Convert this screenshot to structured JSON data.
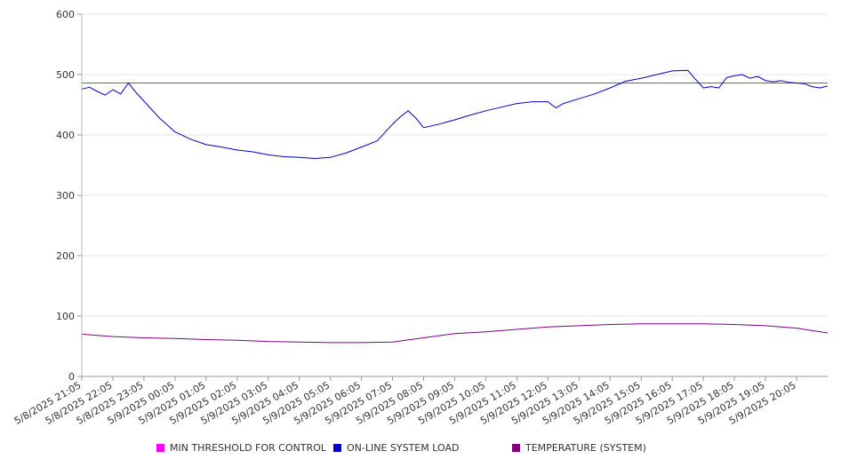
{
  "chart_data": {
    "type": "line",
    "title": "",
    "xlabel": "",
    "ylabel": "",
    "ylim": [
      0,
      600
    ],
    "yticks": [
      0,
      100,
      200,
      300,
      400,
      500,
      600
    ],
    "grid": true,
    "legend_position": "bottom",
    "x_tick_labels": [
      "5/8/2025 21:05",
      "5/8/2025 22:05",
      "5/8/2025 23:05",
      "5/9/2025 00:05",
      "5/9/2025 01:05",
      "5/9/2025 02:05",
      "5/9/2025 03:05",
      "5/9/2025 04:05",
      "5/9/2025 05:05",
      "5/9/2025 06:05",
      "5/9/2025 07:05",
      "5/9/2025 08:05",
      "5/9/2025 09:05",
      "5/9/2025 10:05",
      "5/9/2025 11:05",
      "5/9/2025 12:05",
      "5/9/2025 13:05",
      "5/9/2025 14:05",
      "5/9/2025 15:05",
      "5/9/2025 16:05",
      "5/9/2025 17:05",
      "5/9/2025 18:05",
      "5/9/2025 19:05",
      "5/9/2025 20:05"
    ],
    "x_start": "5/8/2025 21:05",
    "x_end": "5/9/2025 21:05",
    "series": [
      {
        "name": "MIN THRESHOLD FOR CONTROL",
        "color": "#ff00ff",
        "x": [
          "5/8/2025 21:05",
          "5/9/2025 21:05"
        ],
        "values": [
          486,
          486
        ]
      },
      {
        "name": "ON-LINE SYSTEM LOAD",
        "color": "#0000cc",
        "x": [
          "5/8/2025 21:05",
          "5/8/2025 21:20",
          "5/8/2025 21:35",
          "5/8/2025 21:50",
          "5/8/2025 22:05",
          "5/8/2025 22:20",
          "5/8/2025 22:35",
          "5/8/2025 22:50",
          "5/8/2025 23:05",
          "5/8/2025 23:35",
          "5/9/2025 00:05",
          "5/9/2025 00:35",
          "5/9/2025 01:05",
          "5/9/2025 01:35",
          "5/9/2025 02:05",
          "5/9/2025 02:35",
          "5/9/2025 03:05",
          "5/9/2025 03:35",
          "5/9/2025 04:05",
          "5/9/2025 04:35",
          "5/9/2025 05:05",
          "5/9/2025 05:35",
          "5/9/2025 06:05",
          "5/9/2025 06:35",
          "5/9/2025 07:05",
          "5/9/2025 07:20",
          "5/9/2025 07:35",
          "5/9/2025 07:50",
          "5/9/2025 08:05",
          "5/9/2025 08:35",
          "5/9/2025 09:05",
          "5/9/2025 09:35",
          "5/9/2025 10:05",
          "5/9/2025 10:35",
          "5/9/2025 11:05",
          "5/9/2025 11:35",
          "5/9/2025 12:05",
          "5/9/2025 12:20",
          "5/9/2025 12:35",
          "5/9/2025 13:05",
          "5/9/2025 13:35",
          "5/9/2025 14:05",
          "5/9/2025 14:35",
          "5/9/2025 15:05",
          "5/9/2025 15:35",
          "5/9/2025 16:05",
          "5/9/2025 16:35",
          "5/9/2025 16:50",
          "5/9/2025 17:05",
          "5/9/2025 17:20",
          "5/9/2025 17:35",
          "5/9/2025 17:50",
          "5/9/2025 18:05",
          "5/9/2025 18:20",
          "5/9/2025 18:35",
          "5/9/2025 18:50",
          "5/9/2025 19:05",
          "5/9/2025 19:20",
          "5/9/2025 19:35",
          "5/9/2025 19:50",
          "5/9/2025 20:05",
          "5/9/2025 20:20",
          "5/9/2025 20:35",
          "5/9/2025 20:50",
          "5/9/2025 21:05"
        ],
        "values": [
          476,
          479,
          472,
          466,
          475,
          468,
          486,
          470,
          456,
          428,
          405,
          393,
          384,
          380,
          375,
          372,
          367,
          364,
          363,
          361,
          363,
          370,
          380,
          390,
          418,
          430,
          440,
          428,
          412,
          418,
          425,
          433,
          440,
          446,
          452,
          455,
          455,
          445,
          452,
          460,
          468,
          478,
          489,
          494,
          500,
          506,
          507,
          492,
          478,
          480,
          478,
          495,
          498,
          500,
          494,
          497,
          490,
          488,
          490,
          487,
          486,
          485,
          480,
          478,
          481
        ]
      },
      {
        "name": "TEMPERATURE (SYSTEM)",
        "color": "#800080",
        "x": [
          "5/8/2025 21:05",
          "5/8/2025 22:05",
          "5/8/2025 23:05",
          "5/9/2025 00:05",
          "5/9/2025 01:05",
          "5/9/2025 02:05",
          "5/9/2025 03:05",
          "5/9/2025 04:05",
          "5/9/2025 05:05",
          "5/9/2025 06:05",
          "5/9/2025 07:05",
          "5/9/2025 08:05",
          "5/9/2025 09:05",
          "5/9/2025 10:05",
          "5/9/2025 11:05",
          "5/9/2025 12:05",
          "5/9/2025 13:05",
          "5/9/2025 14:05",
          "5/9/2025 15:05",
          "5/9/2025 16:05",
          "5/9/2025 17:05",
          "5/9/2025 18:05",
          "5/9/2025 19:05",
          "5/9/2025 20:05",
          "5/9/2025 21:05"
        ],
        "values": [
          70,
          66,
          64,
          63,
          61,
          60,
          58,
          57,
          56,
          56,
          57,
          64,
          71,
          74,
          78,
          82,
          84,
          86,
          87,
          87,
          87,
          86,
          84,
          80,
          72
        ]
      }
    ]
  }
}
